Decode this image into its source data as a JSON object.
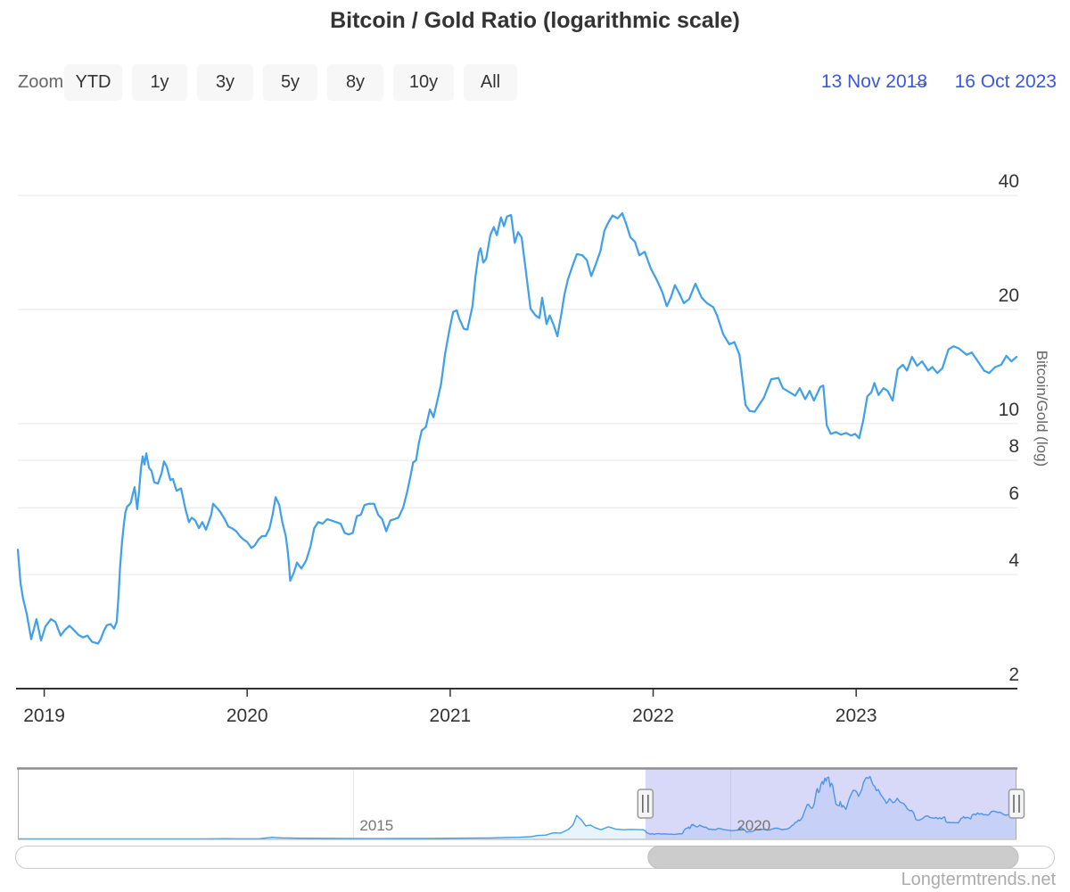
{
  "title": "Bitcoin / Gold Ratio (logarithmic scale)",
  "range_selector": {
    "zoom_label": "Zoom",
    "buttons": [
      "YTD",
      "1y",
      "3y",
      "5y",
      "8y",
      "10y",
      "All"
    ],
    "from_date": "13 Nov 2018",
    "arrow": "→",
    "to_date": "16 Oct 2023"
  },
  "watermark": "Longtermtrends.net",
  "colors": {
    "line": "#41a0e8",
    "nav_fill": "rgba(65,160,232,0.12)",
    "grid": "#e6e6e6",
    "axis_line": "#333333",
    "mask": "rgba(116,120,234,0.28)",
    "date_text": "#3a57e2",
    "handle_fill": "#f4f4f4",
    "handle_border": "#999999",
    "scroll_thumb": "#cccccc",
    "scroll_track_border": "#cccccc"
  },
  "chart_data": {
    "type": "line",
    "title": "Bitcoin / Gold Ratio (logarithmic scale)",
    "xlabel": "",
    "ylabel": "Bitcoin/Gold (log)",
    "legend": "none",
    "grid": "horizontal-only",
    "yaxis": {
      "label": "Bitcoin/Gold (log)",
      "scale": "log",
      "side": "right",
      "ticks": [
        40,
        20,
        10,
        8,
        6,
        4,
        2
      ],
      "range": [
        2,
        60
      ]
    },
    "xaxis": {
      "ticks": [
        2019,
        2020,
        2021,
        2022,
        2023
      ],
      "range_years": [
        2018.87,
        2023.79
      ],
      "from_label": "13 Nov 2018",
      "to_label": "16 Oct 2023"
    },
    "points": [
      [
        2018.87,
        4.65
      ],
      [
        2018.883,
        3.8
      ],
      [
        2018.896,
        3.45
      ],
      [
        2018.914,
        3.15
      ],
      [
        2018.936,
        2.7
      ],
      [
        2018.962,
        3.05
      ],
      [
        2018.984,
        2.68
      ],
      [
        2019.006,
        2.92
      ],
      [
        2019.033,
        3.05
      ],
      [
        2019.055,
        3.0
      ],
      [
        2019.081,
        2.76
      ],
      [
        2019.103,
        2.86
      ],
      [
        2019.125,
        2.93
      ],
      [
        2019.147,
        2.85
      ],
      [
        2019.169,
        2.77
      ],
      [
        2019.191,
        2.73
      ],
      [
        2019.213,
        2.76
      ],
      [
        2019.235,
        2.66
      ],
      [
        2019.265,
        2.63
      ],
      [
        2019.278,
        2.7
      ],
      [
        2019.295,
        2.85
      ],
      [
        2019.309,
        2.94
      ],
      [
        2019.327,
        2.96
      ],
      [
        2019.344,
        2.88
      ],
      [
        2019.357,
        3.0
      ],
      [
        2019.366,
        3.5
      ],
      [
        2019.374,
        4.2
      ],
      [
        2019.383,
        4.85
      ],
      [
        2019.392,
        5.4
      ],
      [
        2019.4,
        5.85
      ],
      [
        2019.409,
        6.05
      ],
      [
        2019.418,
        6.1
      ],
      [
        2019.427,
        6.2
      ],
      [
        2019.436,
        6.5
      ],
      [
        2019.445,
        6.8
      ],
      [
        2019.458,
        5.95
      ],
      [
        2019.467,
        6.6
      ],
      [
        2019.476,
        7.6
      ],
      [
        2019.485,
        8.2
      ],
      [
        2019.494,
        7.8
      ],
      [
        2019.503,
        8.35
      ],
      [
        2019.516,
        7.65
      ],
      [
        2019.529,
        7.5
      ],
      [
        2019.542,
        7.0
      ],
      [
        2019.56,
        6.95
      ],
      [
        2019.578,
        7.4
      ],
      [
        2019.59,
        7.95
      ],
      [
        2019.604,
        7.7
      ],
      [
        2019.621,
        7.1
      ],
      [
        2019.634,
        7.15
      ],
      [
        2019.652,
        6.65
      ],
      [
        2019.674,
        6.75
      ],
      [
        2019.696,
        5.95
      ],
      [
        2019.713,
        5.5
      ],
      [
        2019.727,
        5.65
      ],
      [
        2019.744,
        5.55
      ],
      [
        2019.762,
        5.3
      ],
      [
        2019.779,
        5.5
      ],
      [
        2019.797,
        5.25
      ],
      [
        2019.823,
        5.75
      ],
      [
        2019.832,
        6.15
      ],
      [
        2019.85,
        6.0
      ],
      [
        2019.867,
        5.85
      ],
      [
        2019.889,
        5.6
      ],
      [
        2019.907,
        5.35
      ],
      [
        2019.924,
        5.3
      ],
      [
        2019.946,
        5.2
      ],
      [
        2019.964,
        5.05
      ],
      [
        2019.981,
        4.95
      ],
      [
        2019.999,
        4.88
      ],
      [
        2020.021,
        4.7
      ],
      [
        2020.038,
        4.78
      ],
      [
        2020.056,
        4.95
      ],
      [
        2020.073,
        5.05
      ],
      [
        2020.091,
        5.05
      ],
      [
        2020.11,
        5.3
      ],
      [
        2020.125,
        5.75
      ],
      [
        2020.14,
        6.4
      ],
      [
        2020.158,
        6.1
      ],
      [
        2020.173,
        5.5
      ],
      [
        2020.19,
        5.05
      ],
      [
        2020.202,
        4.5
      ],
      [
        2020.212,
        3.85
      ],
      [
        2020.23,
        4.05
      ],
      [
        2020.245,
        4.3
      ],
      [
        2020.267,
        4.15
      ],
      [
        2020.29,
        4.35
      ],
      [
        2020.312,
        4.75
      ],
      [
        2020.33,
        5.3
      ],
      [
        2020.35,
        5.5
      ],
      [
        2020.372,
        5.45
      ],
      [
        2020.394,
        5.6
      ],
      [
        2020.416,
        5.55
      ],
      [
        2020.438,
        5.5
      ],
      [
        2020.46,
        5.45
      ],
      [
        2020.48,
        5.15
      ],
      [
        2020.5,
        5.1
      ],
      [
        2020.52,
        5.15
      ],
      [
        2020.54,
        5.7
      ],
      [
        2020.56,
        5.75
      ],
      [
        2020.578,
        6.1
      ],
      [
        2020.6,
        6.15
      ],
      [
        2020.625,
        6.15
      ],
      [
        2020.645,
        5.75
      ],
      [
        2020.665,
        5.6
      ],
      [
        2020.685,
        5.2
      ],
      [
        2020.705,
        5.55
      ],
      [
        2020.725,
        5.6
      ],
      [
        2020.745,
        5.65
      ],
      [
        2020.768,
        6.0
      ],
      [
        2020.788,
        6.6
      ],
      [
        2020.803,
        7.2
      ],
      [
        2020.818,
        7.9
      ],
      [
        2020.832,
        8.0
      ],
      [
        2020.846,
        8.9
      ],
      [
        2020.86,
        9.6
      ],
      [
        2020.88,
        9.8
      ],
      [
        2020.9,
        10.9
      ],
      [
        2020.918,
        10.4
      ],
      [
        2020.937,
        11.5
      ],
      [
        2020.955,
        12.7
      ],
      [
        2020.975,
        15.3
      ],
      [
        2020.995,
        17.5
      ],
      [
        2021.014,
        19.7
      ],
      [
        2021.032,
        19.9
      ],
      [
        2021.045,
        18.9
      ],
      [
        2021.067,
        17.8
      ],
      [
        2021.085,
        17.7
      ],
      [
        2021.11,
        20.4
      ],
      [
        2021.124,
        24.3
      ],
      [
        2021.141,
        28.3
      ],
      [
        2021.15,
        29.0
      ],
      [
        2021.163,
        26.6
      ],
      [
        2021.177,
        27.2
      ],
      [
        2021.198,
        31.5
      ],
      [
        2021.215,
        33.0
      ],
      [
        2021.23,
        31.4
      ],
      [
        2021.25,
        35.0
      ],
      [
        2021.265,
        33.2
      ],
      [
        2021.28,
        35.2
      ],
      [
        2021.3,
        35.5
      ],
      [
        2021.318,
        30.0
      ],
      [
        2021.335,
        32.0
      ],
      [
        2021.352,
        31.0
      ],
      [
        2021.37,
        26.0
      ],
      [
        2021.396,
        20.1
      ],
      [
        2021.42,
        19.3
      ],
      [
        2021.44,
        19.0
      ],
      [
        2021.453,
        21.5
      ],
      [
        2021.475,
        18.3
      ],
      [
        2021.49,
        19.3
      ],
      [
        2021.51,
        18.2
      ],
      [
        2021.528,
        17.0
      ],
      [
        2021.548,
        19.5
      ],
      [
        2021.563,
        21.9
      ],
      [
        2021.58,
        24.0
      ],
      [
        2021.602,
        26.0
      ],
      [
        2021.624,
        28.0
      ],
      [
        2021.651,
        27.8
      ],
      [
        2021.673,
        27.0
      ],
      [
        2021.695,
        24.5
      ],
      [
        2021.717,
        26.3
      ],
      [
        2021.74,
        28.5
      ],
      [
        2021.76,
        32.3
      ],
      [
        2021.78,
        34.0
      ],
      [
        2021.8,
        35.4
      ],
      [
        2021.825,
        34.8
      ],
      [
        2021.848,
        35.9
      ],
      [
        2021.868,
        33.5
      ],
      [
        2021.888,
        31.0
      ],
      [
        2021.91,
        30.2
      ],
      [
        2021.932,
        27.8
      ],
      [
        2021.958,
        28.4
      ],
      [
        2021.989,
        25.6
      ],
      [
        2022.01,
        24.4
      ],
      [
        2022.028,
        23.3
      ],
      [
        2022.045,
        22.2
      ],
      [
        2022.067,
        20.4
      ],
      [
        2022.087,
        21.5
      ],
      [
        2022.107,
        23.2
      ],
      [
        2022.13,
        22.0
      ],
      [
        2022.151,
        20.8
      ],
      [
        2022.177,
        21.3
      ],
      [
        2022.208,
        23.4
      ],
      [
        2022.239,
        21.5
      ],
      [
        2022.265,
        20.8
      ],
      [
        2022.296,
        20.3
      ],
      [
        2022.315,
        19.3
      ],
      [
        2022.345,
        17.2
      ],
      [
        2022.375,
        16.2
      ],
      [
        2022.4,
        16.4
      ],
      [
        2022.425,
        15.2
      ],
      [
        2022.455,
        11.2
      ],
      [
        2022.475,
        10.8
      ],
      [
        2022.5,
        10.75
      ],
      [
        2022.545,
        11.7
      ],
      [
        2022.582,
        13.1
      ],
      [
        2022.617,
        13.2
      ],
      [
        2022.639,
        12.4
      ],
      [
        2022.661,
        12.2
      ],
      [
        2022.7,
        11.85
      ],
      [
        2022.722,
        12.4
      ],
      [
        2022.749,
        11.6
      ],
      [
        2022.771,
        12.2
      ],
      [
        2022.792,
        11.5
      ],
      [
        2022.823,
        12.5
      ],
      [
        2022.838,
        12.6
      ],
      [
        2022.855,
        9.9
      ],
      [
        2022.875,
        9.4
      ],
      [
        2022.9,
        9.5
      ],
      [
        2022.925,
        9.35
      ],
      [
        2022.95,
        9.45
      ],
      [
        2022.975,
        9.3
      ],
      [
        2022.995,
        9.4
      ],
      [
        2023.015,
        9.15
      ],
      [
        2023.035,
        10.2
      ],
      [
        2023.055,
        11.8
      ],
      [
        2023.075,
        12.1
      ],
      [
        2023.09,
        12.8
      ],
      [
        2023.11,
        11.9
      ],
      [
        2023.135,
        12.4
      ],
      [
        2023.155,
        12.2
      ],
      [
        2023.18,
        11.5
      ],
      [
        2023.205,
        13.9
      ],
      [
        2023.23,
        14.3
      ],
      [
        2023.25,
        13.8
      ],
      [
        2023.275,
        15.0
      ],
      [
        2023.3,
        14.2
      ],
      [
        2023.325,
        14.6
      ],
      [
        2023.355,
        13.8
      ],
      [
        2023.375,
        14.1
      ],
      [
        2023.4,
        13.6
      ],
      [
        2023.425,
        14.0
      ],
      [
        2023.455,
        15.7
      ],
      [
        2023.48,
        16.0
      ],
      [
        2023.505,
        15.8
      ],
      [
        2023.545,
        15.2
      ],
      [
        2023.57,
        15.4
      ],
      [
        2023.6,
        14.6
      ],
      [
        2023.63,
        13.8
      ],
      [
        2023.655,
        13.6
      ],
      [
        2023.685,
        14.1
      ],
      [
        2023.715,
        14.3
      ],
      [
        2023.74,
        15.1
      ],
      [
        2023.765,
        14.6
      ],
      [
        2023.79,
        15.0
      ]
    ],
    "navigator": {
      "range_years": [
        2010.55,
        2023.79
      ],
      "selected_from": 2018.87,
      "selected_to": 2023.79,
      "ticks": [
        2015,
        2020
      ],
      "yaxis_range": [
        0,
        40
      ],
      "pre_history": [
        [
          2010.55,
          0.01
        ],
        [
          2011.2,
          0.03
        ],
        [
          2011.5,
          0.02
        ],
        [
          2012.0,
          0.015
        ],
        [
          2012.6,
          0.01
        ],
        [
          2013.0,
          0.02
        ],
        [
          2013.28,
          0.15
        ],
        [
          2013.45,
          0.08
        ],
        [
          2013.75,
          0.12
        ],
        [
          2013.92,
          0.9
        ],
        [
          2014.05,
          0.6
        ],
        [
          2014.3,
          0.4
        ],
        [
          2014.6,
          0.35
        ],
        [
          2014.85,
          0.28
        ],
        [
          2015.1,
          0.21
        ],
        [
          2015.4,
          0.2
        ],
        [
          2015.7,
          0.24
        ],
        [
          2015.95,
          0.33
        ],
        [
          2016.2,
          0.34
        ],
        [
          2016.5,
          0.48
        ],
        [
          2016.8,
          0.56
        ],
        [
          2017.0,
          0.83
        ],
        [
          2017.2,
          0.98
        ],
        [
          2017.35,
          1.3
        ],
        [
          2017.45,
          2.0
        ],
        [
          2017.55,
          2.2
        ],
        [
          2017.65,
          3.5
        ],
        [
          2017.75,
          3.4
        ],
        [
          2017.85,
          5.5
        ],
        [
          2017.91,
          8.0
        ],
        [
          2017.96,
          13.5
        ],
        [
          2018.02,
          11.0
        ],
        [
          2018.08,
          7.5
        ],
        [
          2018.14,
          8.0
        ],
        [
          2018.2,
          6.5
        ],
        [
          2018.28,
          5.3
        ],
        [
          2018.38,
          7.0
        ],
        [
          2018.48,
          5.6
        ],
        [
          2018.58,
          5.3
        ],
        [
          2018.68,
          5.5
        ],
        [
          2018.78,
          5.35
        ],
        [
          2018.84,
          5.3
        ]
      ]
    }
  }
}
